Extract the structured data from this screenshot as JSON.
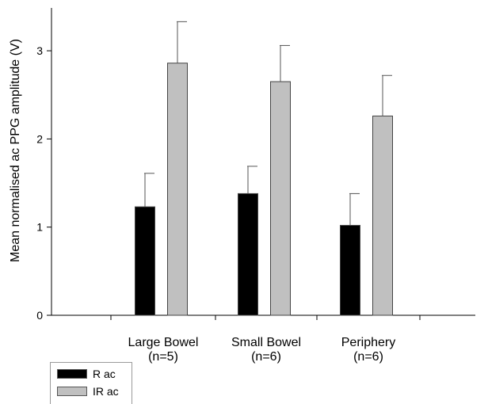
{
  "chart_data": {
    "type": "bar",
    "title": "",
    "xlabel": "",
    "ylabel": "Mean normalised ac PPG amplitude (V)",
    "ylim": [
      0,
      3.5
    ],
    "yticks": [
      "0",
      "1",
      "2",
      "3"
    ],
    "grid": false,
    "legend_position": "bottom-left",
    "categories": [
      [
        "Large Bowel",
        "(n=5)"
      ],
      [
        "Small Bowel",
        "(n=6)"
      ],
      [
        "Periphery",
        "(n=6)"
      ]
    ],
    "series": [
      {
        "name": "R ac",
        "color": "#000000",
        "values": [
          1.23,
          1.38,
          1.02
        ],
        "error": [
          0.38,
          0.31,
          0.36
        ]
      },
      {
        "name": "IR ac",
        "color": "#c0c0c0",
        "values": [
          2.86,
          2.65,
          2.26
        ],
        "error": [
          0.47,
          0.41,
          0.46
        ]
      }
    ]
  }
}
